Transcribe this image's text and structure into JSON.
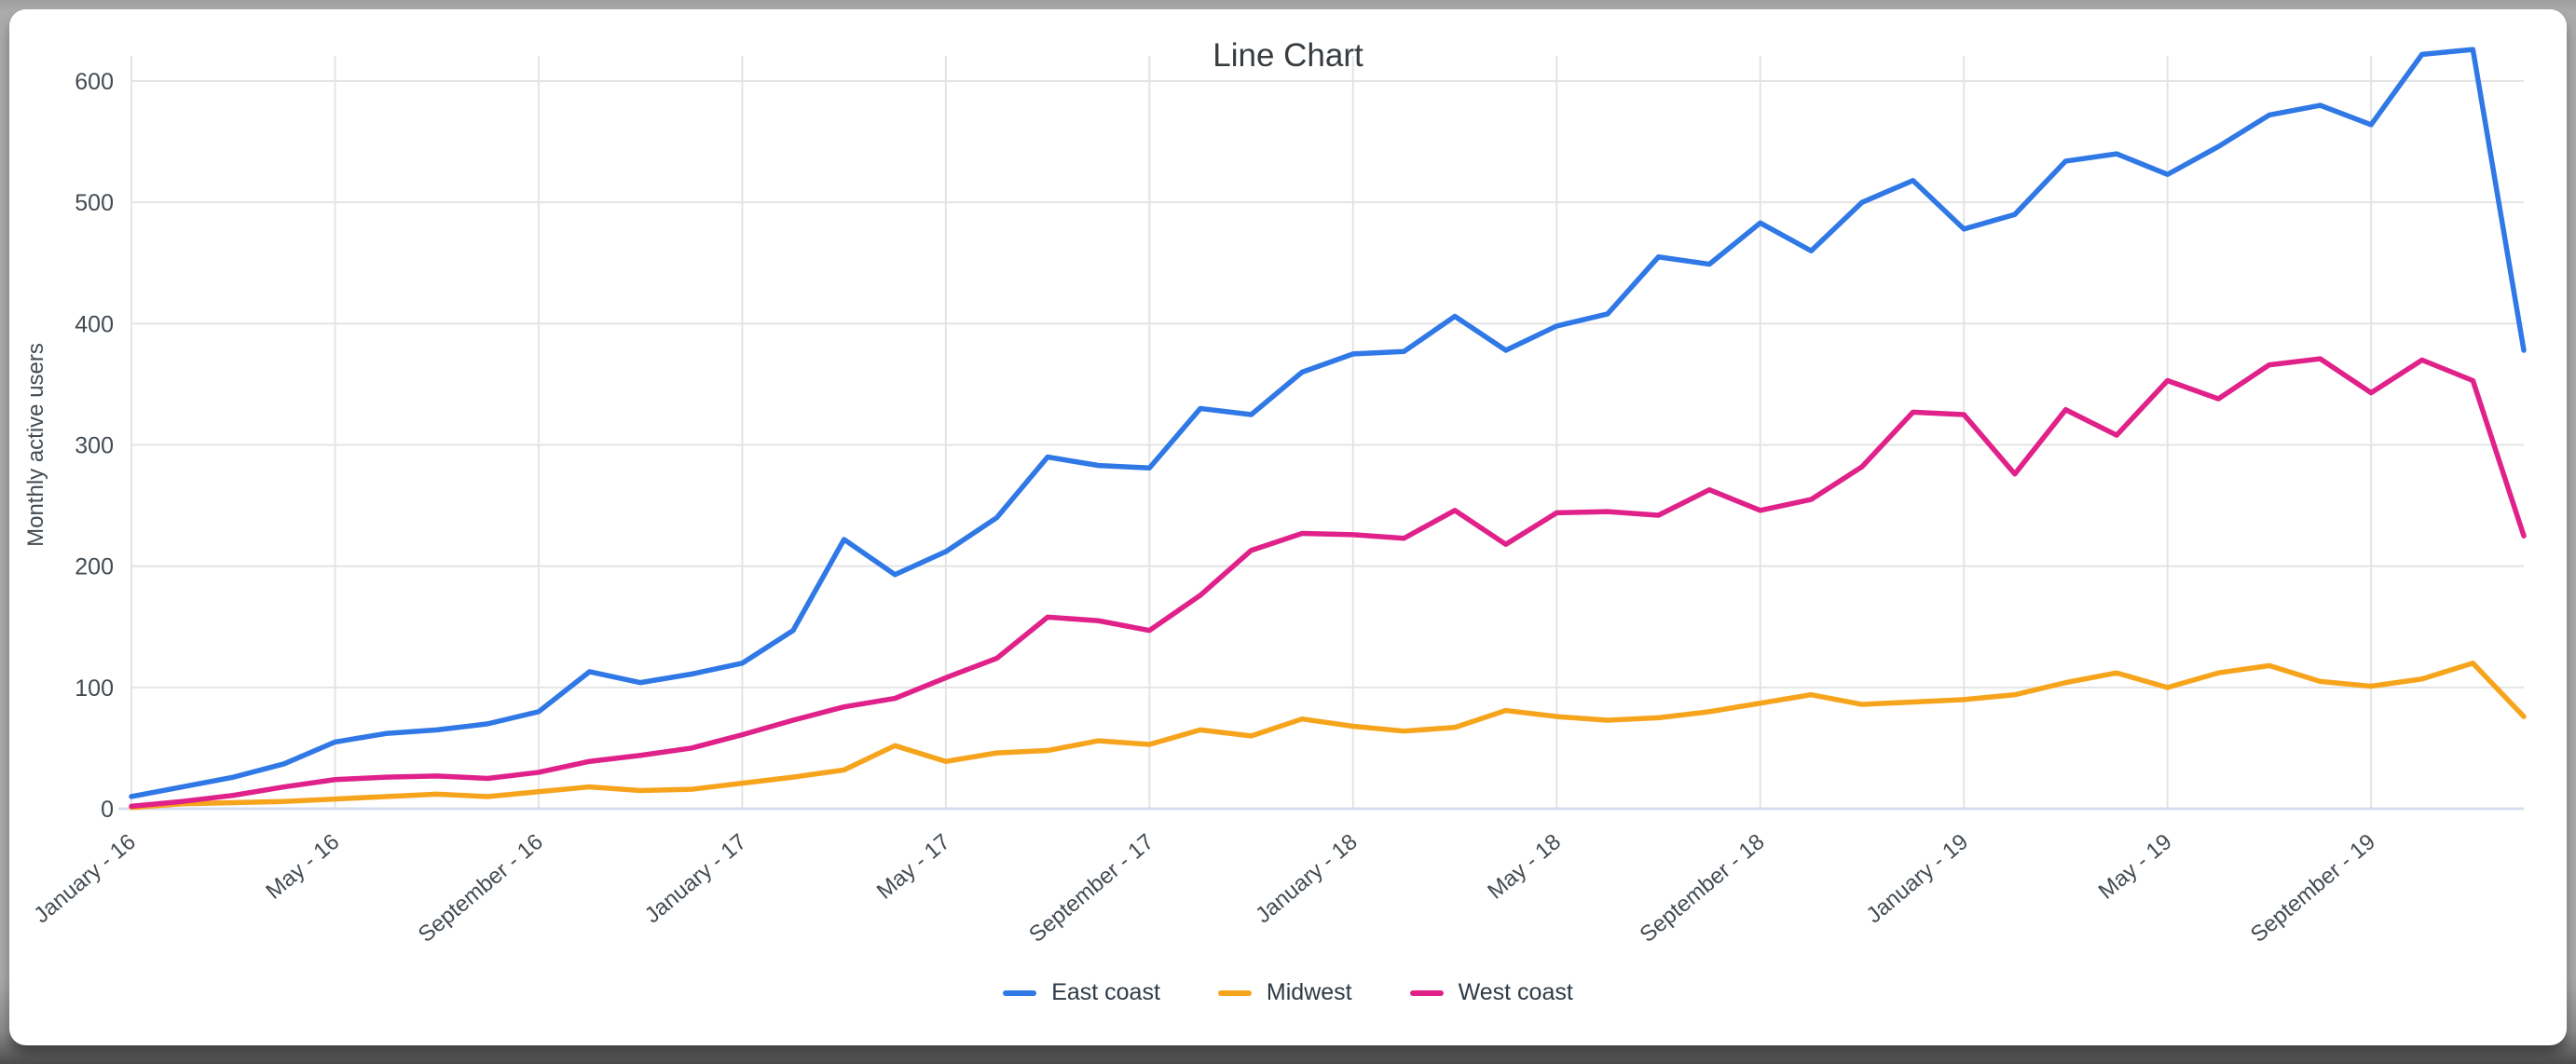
{
  "window": {
    "frame_color": "#ababab",
    "card_color": "#ffffff"
  },
  "chart_data": {
    "type": "line",
    "title": "Line Chart",
    "xlabel": "",
    "ylabel": "Monthly active users",
    "ylim": [
      0,
      650
    ],
    "yticks": [
      0,
      100,
      200,
      300,
      400,
      500,
      600
    ],
    "grid": true,
    "legend_position": "bottom",
    "n_points": 48,
    "x_start_label": "January - 16",
    "x_tick_indices": [
      0,
      4,
      8,
      12,
      16,
      20,
      24,
      28,
      32,
      36,
      40,
      44
    ],
    "x_tick_labels": [
      "January - 16",
      "May - 16",
      "September - 16",
      "January - 17",
      "May - 17",
      "September - 17",
      "January - 18",
      "May - 18",
      "September - 18",
      "January - 19",
      "May - 19",
      "September - 19"
    ],
    "series": [
      {
        "name": "East coast",
        "color": "#2f78e6",
        "values": [
          10,
          18,
          26,
          37,
          55,
          62,
          65,
          70,
          80,
          113,
          104,
          111,
          120,
          147,
          222,
          193,
          212,
          240,
          290,
          283,
          281,
          330,
          325,
          360,
          375,
          377,
          406,
          378,
          398,
          408,
          455,
          449,
          483,
          460,
          500,
          518,
          478,
          490,
          534,
          540,
          523,
          546,
          572,
          580,
          564,
          622,
          626,
          378
        ]
      },
      {
        "name": "Midwest",
        "color": "#f7a41d",
        "values": [
          1,
          4,
          5,
          6,
          8,
          10,
          12,
          10,
          14,
          18,
          15,
          16,
          21,
          26,
          32,
          52,
          39,
          46,
          48,
          56,
          53,
          65,
          60,
          74,
          68,
          64,
          67,
          81,
          76,
          73,
          75,
          80,
          87,
          94,
          86,
          88,
          90,
          94,
          104,
          112,
          100,
          112,
          118,
          105,
          101,
          107,
          120,
          76
        ]
      },
      {
        "name": "West coast",
        "color": "#e0218a",
        "values": [
          2,
          6,
          11,
          18,
          24,
          26,
          27,
          25,
          30,
          39,
          44,
          50,
          61,
          73,
          84,
          91,
          108,
          124,
          158,
          155,
          147,
          176,
          213,
          227,
          226,
          223,
          246,
          218,
          244,
          245,
          242,
          263,
          246,
          255,
          282,
          327,
          325,
          276,
          329,
          308,
          353,
          338,
          366,
          371,
          343,
          370,
          353,
          225
        ]
      }
    ],
    "style": {
      "gridline_color": "#e4e4e4",
      "baseline_color": "#d7ddee",
      "tick_label_color": "#434b52",
      "axis_title_color": "#434b52",
      "title_color": "#373c41"
    }
  }
}
